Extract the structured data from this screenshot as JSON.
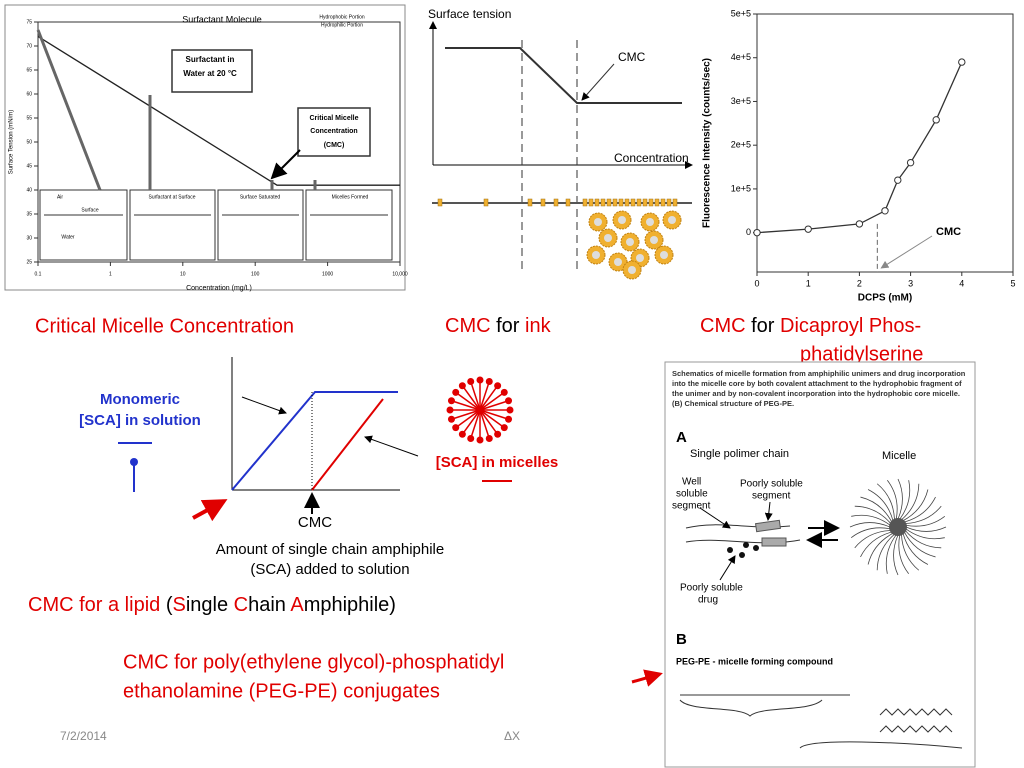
{
  "chart_data": [
    {
      "type": "line",
      "xlabel": "Concentration (mg/L)",
      "ylabel": "Surface Tension (mN/m)",
      "xscale": "log",
      "x": [
        0.1,
        200,
        10000
      ],
      "series": [
        {
          "color": "#222222",
          "values": [
            72,
            41,
            41
          ]
        }
      ],
      "xlim": [
        0.1,
        10000
      ],
      "ylim": [
        25,
        75
      ],
      "xticks": [
        0.1,
        1,
        10,
        100,
        1000,
        {
          "value": 10000,
          "label": "10,000"
        }
      ],
      "yticks": [
        25,
        30,
        35,
        40,
        45,
        50,
        55,
        60,
        65,
        70,
        75
      ],
      "annotations": [
        "Surfactant Molecule",
        "Hydrophobic Portion",
        "Hydrophilic Portion",
        "Surfactant in",
        "Water at 20 °C",
        "Critical Micelle",
        "Concentration",
        "(CMC)",
        "Air",
        "Surface",
        "Water",
        "Surfactant at Surface",
        "Surface Saturated",
        "Micelles Formed"
      ]
    },
    {
      "type": "line",
      "xlabel": "DCPS (mM)",
      "ylabel": "Fluorescence Intensity (counts/sec)",
      "x": [
        0,
        1,
        2,
        2.5,
        2.75,
        3,
        3.5,
        4
      ],
      "series": [
        {
          "color": "#333333",
          "values": [
            0,
            8000,
            20000,
            50000,
            120000,
            160000,
            258000,
            390000
          ]
        }
      ],
      "marker": "circle",
      "xlim": [
        0,
        5
      ],
      "ylim": [
        -90000,
        500000
      ],
      "xticks": [
        0,
        1,
        2,
        3,
        4,
        5
      ],
      "yticks": [
        0,
        {
          "value": 100000,
          "label": "1e+5"
        },
        {
          "value": 200000,
          "label": "2e+5"
        },
        {
          "value": 300000,
          "label": "3e+5"
        },
        {
          "value": 400000,
          "label": "4e+5"
        },
        {
          "value": 500000,
          "label": "5e+5"
        }
      ],
      "cmc_x": 2.35,
      "annotations": [
        "CMC"
      ]
    }
  ],
  "ink": {
    "ylabel": "Surface tension",
    "cmc": "CMC",
    "xlabel": "Concentration"
  },
  "lipid": {
    "monomeric": "Monomeric",
    "solution": "[SCA] in solution",
    "micelles": "[SCA] in micelles",
    "cmc": "CMC",
    "xlabel1": "Amount of single chain amphiphile",
    "xlabel2": "(SCA) added to solution"
  },
  "captions": {
    "left": "Critical Micelle Concentration",
    "ink": [
      "CMC",
      "for",
      "ink"
    ],
    "dcps": [
      "CMC",
      "for",
      "Dicaproyl Phos-",
      "phatidylserine"
    ],
    "lipid": [
      "CMC for a lipid",
      " (",
      "S",
      "ingle ",
      "C",
      "hain ",
      "A",
      "mphiphile)"
    ],
    "peg": [
      "CMC for poly(ethylene glycol)-phosphatidyl",
      "ethanolamine (PEG-PE) conjugates"
    ]
  },
  "figure": {
    "text": [
      "Schematics of micelle formation from amphiphilic unimers and drug incorporation",
      "into the micelle core by both covalent attachment to the hydrophobic fragment of",
      "the unimer and by non-covalent incorporation into the hydrophobic core micelle.",
      "(B) Chemical structure of PEG-PE."
    ],
    "a": "A",
    "chain": "Single polimer chain",
    "micelle": "Micelle",
    "well": [
      "Well",
      "soluble",
      "segment"
    ],
    "poor": [
      "Poorly soluble",
      "segment"
    ],
    "drug": [
      "Poorly soluble",
      "drug"
    ],
    "b": "B",
    "peg": "PEG-PE - micelle forming compound"
  },
  "footer": {
    "date": "7/2/2014",
    "center": "ΔX"
  }
}
